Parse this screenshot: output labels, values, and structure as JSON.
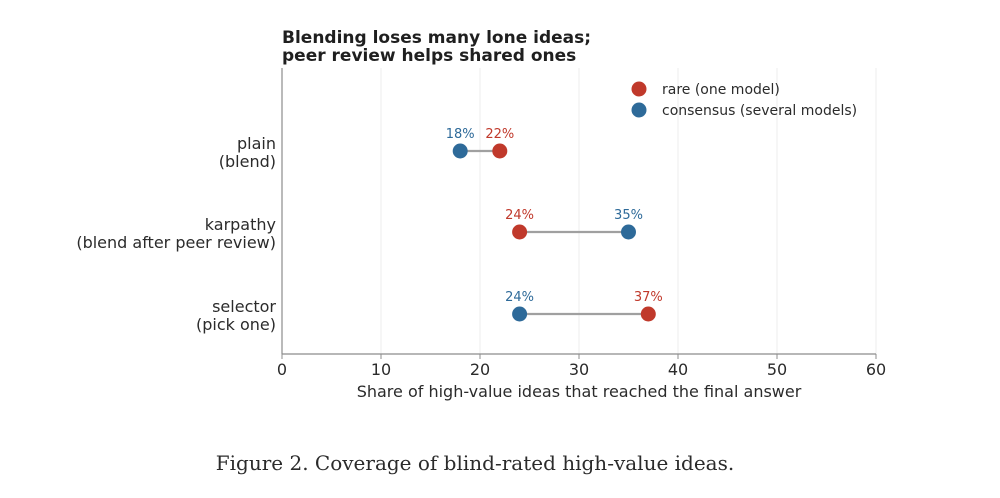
{
  "chart_data": {
    "type": "dumbbell",
    "title_lines": [
      "Blending loses many lone ideas;",
      "peer review helps shared ones"
    ],
    "xlabel": "Share of high-value ideas that reached the final answer",
    "ylabel": "",
    "xlim": [
      0,
      60
    ],
    "xticks": [
      0,
      10,
      20,
      30,
      40,
      50,
      60
    ],
    "grid": "vertical",
    "legend_placement": "top-right",
    "categories": [
      {
        "line1": "plain",
        "line2": "(blend)"
      },
      {
        "line1": "karpathy",
        "line2": "(blend after peer review)"
      },
      {
        "line1": "selector",
        "line2": "(pick one)"
      }
    ],
    "series": [
      {
        "name": "rare (one model)",
        "color": "#c0392b",
        "values": [
          22,
          24,
          37
        ],
        "labels": [
          "22%",
          "24%",
          "37%"
        ]
      },
      {
        "name": "consensus (several models)",
        "color": "#2e6a99",
        "values": [
          18,
          35,
          24
        ],
        "labels": [
          "18%",
          "35%",
          "24%"
        ]
      }
    ],
    "connector_color": "#a0a0a0"
  },
  "caption": "Figure 2. Coverage of blind-rated high-value ideas."
}
